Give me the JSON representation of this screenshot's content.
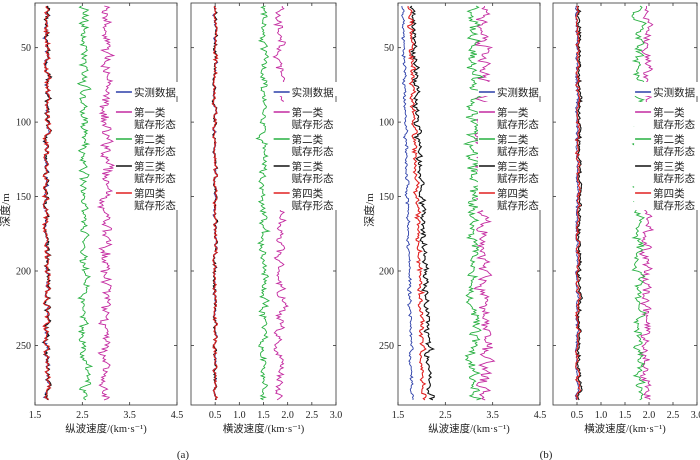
{
  "figure": {
    "ylabel": "深度/m",
    "panel_labels": [
      "(a)",
      "(b)"
    ],
    "yticks": [
      50,
      100,
      150,
      200,
      250
    ]
  },
  "legend": [
    "实测数据",
    "第一类\n赋存形态",
    "第二类\n赋存形态",
    "第三类\n赋存形态",
    "第四类\n赋存形态"
  ],
  "series_colors": [
    "#2b3ea8",
    "#c42aa0",
    "#27b040",
    "#111111",
    "#e02020"
  ],
  "chart_data": [
    {
      "type": "line",
      "panel": "(a) left",
      "xlabel": "纵波速度/(km·s⁻¹)",
      "xticks": [
        "1.5",
        "2.5",
        "3.5",
        "4.5"
      ],
      "xlim": [
        1.5,
        4.5
      ],
      "ylim": [
        290,
        20
      ],
      "y_reversed": true,
      "depth_range": [
        22,
        287
      ],
      "series": [
        {
          "name": "实测数据",
          "mean": 1.75,
          "amplitude": 0.06
        },
        {
          "name": "第一类赋存形态",
          "mean": 3.0,
          "amplitude": 0.12
        },
        {
          "name": "第二类赋存形态",
          "mean": 2.55,
          "amplitude": 0.1
        },
        {
          "name": "第三类赋存形态",
          "mean": 1.76,
          "amplitude": 0.06
        },
        {
          "name": "第四类赋存形态",
          "mean": 1.75,
          "amplitude": 0.06
        }
      ]
    },
    {
      "type": "line",
      "panel": "(a) right",
      "xlabel": "横波速度/(km·s⁻¹)",
      "xticks": [
        "0.5",
        "1.0",
        "1.5",
        "2.0",
        "2.5",
        "3.0"
      ],
      "xlim": [
        0.0,
        3.0
      ],
      "ylim": [
        290,
        20
      ],
      "y_reversed": true,
      "depth_range": [
        22,
        287
      ],
      "series": [
        {
          "name": "实测数据",
          "mean": 0.5,
          "amplitude": 0.04
        },
        {
          "name": "第一类赋存形态",
          "mean": 1.85,
          "amplitude": 0.1
        },
        {
          "name": "第二类赋存形态",
          "mean": 1.5,
          "amplitude": 0.08
        },
        {
          "name": "第三类赋存形态",
          "mean": 0.5,
          "amplitude": 0.04
        },
        {
          "name": "第四类赋存形态",
          "mean": 0.5,
          "amplitude": 0.04
        }
      ]
    },
    {
      "type": "line",
      "panel": "(b) left",
      "xlabel": "纵波速度/(km·s⁻¹)",
      "xticks": [
        "1.5",
        "2.5",
        "3.5",
        "4.5"
      ],
      "xlim": [
        1.5,
        4.5
      ],
      "ylim": [
        290,
        20
      ],
      "y_reversed": true,
      "depth_range": [
        22,
        287
      ],
      "series": [
        {
          "name": "实测数据",
          "mean_top": 1.6,
          "mean_bottom": 1.8,
          "amplitude": 0.04
        },
        {
          "name": "第一类赋存形态",
          "mean": 3.3,
          "amplitude": 0.15
        },
        {
          "name": "第二类赋存形态",
          "mean": 3.1,
          "amplitude": 0.14
        },
        {
          "name": "第三类赋存形态",
          "mean_top": 1.8,
          "mean_bottom": 2.2,
          "amplitude": 0.07
        },
        {
          "name": "第四类赋存形态",
          "mean_top": 1.75,
          "mean_bottom": 2.05,
          "amplitude": 0.06
        }
      ]
    },
    {
      "type": "line",
      "panel": "(b) right",
      "xlabel": "横波速度/(km·s⁻¹)",
      "xticks": [
        "0.5",
        "1.0",
        "1.5",
        "2.0",
        "2.5",
        "3.0"
      ],
      "xlim": [
        0.0,
        3.0
      ],
      "ylim": [
        290,
        20
      ],
      "y_reversed": true,
      "depth_range": [
        22,
        287
      ],
      "series": [
        {
          "name": "实测数据",
          "mean": 0.5,
          "amplitude": 0.03
        },
        {
          "name": "第一类赋存形态",
          "mean": 1.95,
          "amplitude": 0.1
        },
        {
          "name": "第二类赋存形态",
          "mean": 1.8,
          "amplitude": 0.1
        },
        {
          "name": "第三类赋存形态",
          "mean": 0.55,
          "amplitude": 0.04
        },
        {
          "name": "第四类赋存形态",
          "mean": 0.52,
          "amplitude": 0.04
        }
      ]
    }
  ]
}
